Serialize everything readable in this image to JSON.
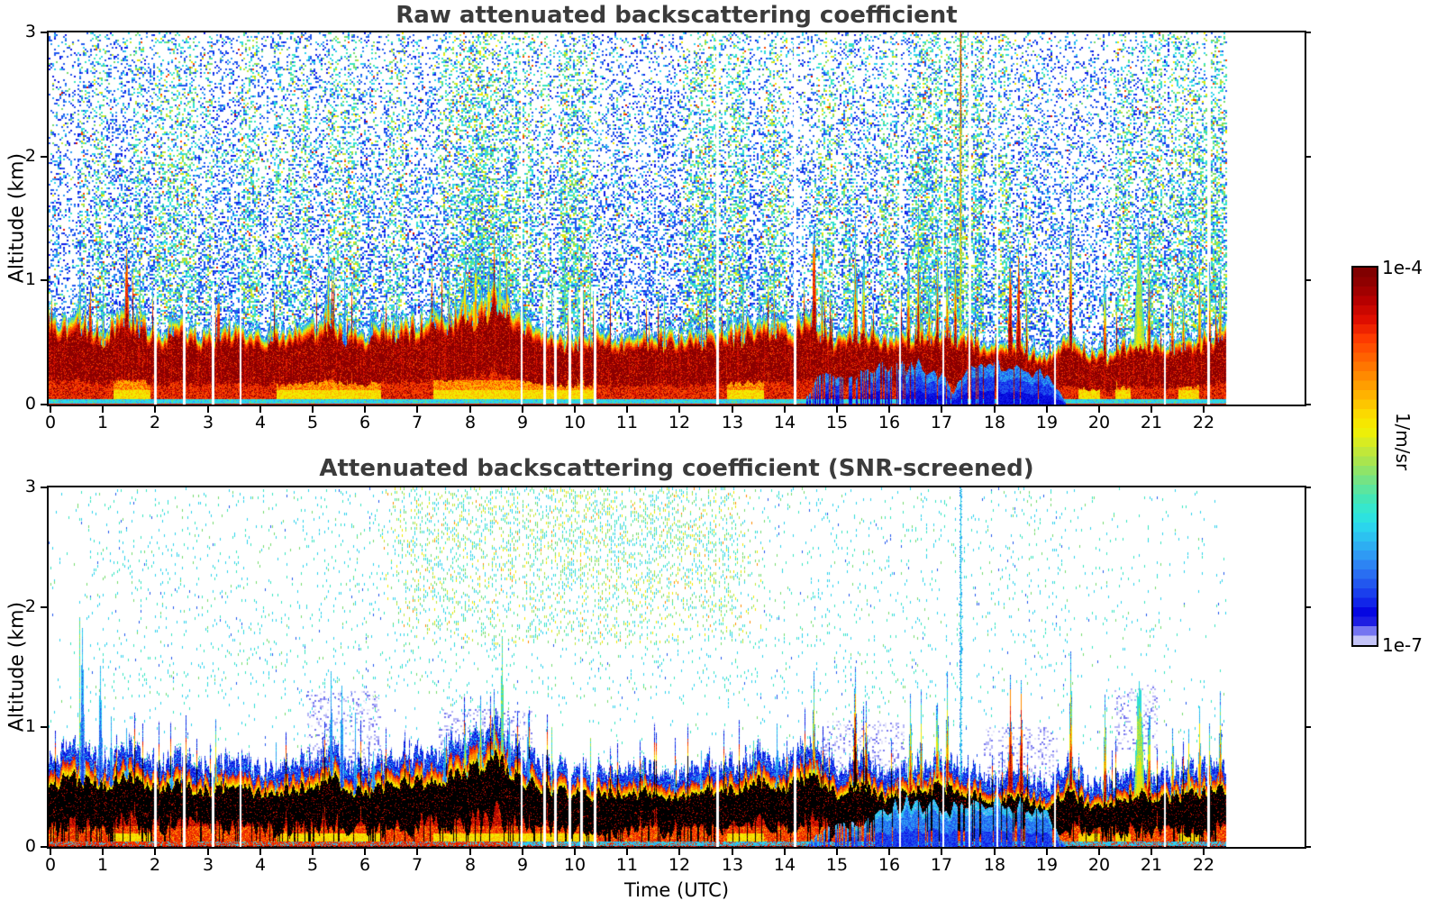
{
  "figure": {
    "background": "#ffffff",
    "title_color": "#3b3b3b",
    "axis_color": "#000000"
  },
  "panel_raw": {
    "title": "Raw attenuated backscattering coefficient",
    "ylabel": "Altitude (km)"
  },
  "panel_screened": {
    "title": "Attenuated backscattering coefficient (SNR-screened)",
    "ylabel": "Altitude (km)",
    "xlabel": "Time (UTC)"
  },
  "colorbar": {
    "max_label": "1e-4",
    "min_label": "1e-7",
    "units_label": "1/m/sr",
    "stops": [
      [
        0,
        "#7a0000"
      ],
      [
        0.045,
        "#930000"
      ],
      [
        0.09,
        "#b80000"
      ],
      [
        0.14,
        "#e00f00"
      ],
      [
        0.19,
        "#ff3c00"
      ],
      [
        0.24,
        "#ff6400"
      ],
      [
        0.29,
        "#ff8c00"
      ],
      [
        0.34,
        "#ffb400"
      ],
      [
        0.385,
        "#fbd800"
      ],
      [
        0.43,
        "#f3f000"
      ],
      [
        0.475,
        "#cdea2e"
      ],
      [
        0.52,
        "#a2e455"
      ],
      [
        0.565,
        "#72e387"
      ],
      [
        0.61,
        "#46e6b4"
      ],
      [
        0.65,
        "#2ee8d8"
      ],
      [
        0.69,
        "#2bd4ee"
      ],
      [
        0.73,
        "#2db4f2"
      ],
      [
        0.77,
        "#2f94f4"
      ],
      [
        0.81,
        "#2a70f2"
      ],
      [
        0.85,
        "#1f4cee"
      ],
      [
        0.885,
        "#1228ea"
      ],
      [
        0.91,
        "#0708e2"
      ],
      [
        0.93,
        "#0000d8"
      ],
      [
        0.945,
        "#3a3aec"
      ],
      [
        0.962,
        "#7272f1"
      ],
      [
        0.978,
        "#a5a5f6"
      ],
      [
        0.99,
        "#ccccf9"
      ],
      [
        1,
        "#e9e9fc"
      ]
    ]
  },
  "palette": {
    "darkred": "#8b0000",
    "red": "#dd1400",
    "orangered": "#fb4a00",
    "orange": "#ff8c00",
    "amber": "#ffb400",
    "yellow": "#f2ea00",
    "yellowgreen": "#bfe636",
    "green": "#74dd6e",
    "teal": "#35e6c1",
    "cyan": "#2cd2ee",
    "skyblue": "#2f9cf4",
    "blue": "#2057ee",
    "strongblue": "#0f1ae8",
    "darkblue": "#0000d2",
    "periwinkle": "#7878f1",
    "lavender": "#b4b4f6",
    "palelavender": "#e6e6fc",
    "black": "#000000",
    "white": "#ffffff"
  },
  "chart_data": {
    "type": "heatmap",
    "x_axis": {
      "label": "Time (UTC)",
      "units": "hours UTC",
      "range": [
        0,
        24
      ],
      "ticks": [
        0,
        1,
        2,
        3,
        4,
        5,
        6,
        7,
        8,
        9,
        10,
        11,
        12,
        13,
        14,
        15,
        16,
        17,
        18,
        19,
        20,
        21,
        22
      ],
      "data_end_hour": 22.42
    },
    "y_axis": {
      "label": "Altitude (km)",
      "range": [
        0,
        3
      ],
      "ticks": [
        0,
        1,
        2,
        3
      ]
    },
    "color_axis": {
      "min": "1e-7",
      "max": "1e-4",
      "units": "1/m/sr",
      "scale": "logarithmic, jet-like colormap, white below minimum"
    },
    "panels": [
      {
        "name": "raw",
        "title": "Raw attenuated backscattering coefficient",
        "description": "Strong boundary-layer aerosol band below ~0.6 km saturating to dark red; dense blue/cyan noise speckle through the free troposphere; attenuated blue near-surface zone 14.4-19.3 UTC; cloud plumes up to ~1.5 km; bright yellow calibration streak at 17.35 UTC; data end 22.42 UTC."
      },
      {
        "name": "screened",
        "title": "Attenuated backscattering coefficient (SNR-screened)",
        "description": "Same scene after SNR screening: background noise removed except residual green/yellow plume 6.3-13.6 UTC above 1.7 km; saturated black core inside the boundary-layer band; blue caps and pale lavender fringes; cyan streak at 17.35 UTC."
      }
    ],
    "boundary_layer_top_km": [
      [
        0,
        0.62
      ],
      [
        0.5,
        0.7
      ],
      [
        1,
        0.6
      ],
      [
        1.5,
        0.72
      ],
      [
        2,
        0.58
      ],
      [
        2.5,
        0.62
      ],
      [
        3,
        0.55
      ],
      [
        3.5,
        0.62
      ],
      [
        4,
        0.52
      ],
      [
        4.5,
        0.58
      ],
      [
        5,
        0.6
      ],
      [
        5.3,
        0.72
      ],
      [
        5.7,
        0.58
      ],
      [
        6,
        0.55
      ],
      [
        6.5,
        0.62
      ],
      [
        7,
        0.66
      ],
      [
        7.5,
        0.7
      ],
      [
        8,
        0.76
      ],
      [
        8.5,
        0.88
      ],
      [
        8.8,
        0.74
      ],
      [
        9,
        0.64
      ],
      [
        9.5,
        0.58
      ],
      [
        10,
        0.52
      ],
      [
        10.5,
        0.55
      ],
      [
        11,
        0.52
      ],
      [
        11.5,
        0.55
      ],
      [
        12,
        0.52
      ],
      [
        12.5,
        0.55
      ],
      [
        13,
        0.58
      ],
      [
        13.5,
        0.66
      ],
      [
        14,
        0.6
      ],
      [
        14.5,
        0.7
      ],
      [
        15,
        0.52
      ],
      [
        15.4,
        0.62
      ],
      [
        16,
        0.5
      ],
      [
        16.5,
        0.58
      ],
      [
        17,
        0.6
      ],
      [
        17.4,
        0.55
      ],
      [
        18,
        0.48
      ],
      [
        18.5,
        0.5
      ],
      [
        19,
        0.38
      ],
      [
        19.4,
        0.6
      ],
      [
        19.8,
        0.42
      ],
      [
        20.2,
        0.4
      ],
      [
        20.7,
        0.55
      ],
      [
        21,
        0.48
      ],
      [
        21.5,
        0.5
      ],
      [
        22,
        0.55
      ],
      [
        22.42,
        0.62
      ]
    ],
    "blue_zone_raw": {
      "hours": [
        14.35,
        19.35
      ],
      "mix_until": 16.2,
      "red_streak_prob_early": 0.45,
      "red_streak_prob_late": 0.12,
      "top_km": [
        [
          14.35,
          0.02
        ],
        [
          14.6,
          0.18
        ],
        [
          15,
          0.25
        ],
        [
          15.5,
          0.22
        ],
        [
          16,
          0.3
        ],
        [
          16.5,
          0.3
        ],
        [
          17,
          0.22
        ],
        [
          17.2,
          0.1
        ],
        [
          17.5,
          0.25
        ],
        [
          18,
          0.34
        ],
        [
          18.5,
          0.3
        ],
        [
          19,
          0.22
        ],
        [
          19.35,
          0.02
        ]
      ]
    },
    "blue_zone_screened": {
      "hours": [
        14.35,
        19.35
      ],
      "mix_until": 15.7,
      "red_streak_prob_early": 0.55,
      "red_streak_prob_late": 0.15,
      "top_km": [
        [
          14.35,
          0.02
        ],
        [
          14.8,
          0.15
        ],
        [
          15.3,
          0.18
        ],
        [
          15.8,
          0.25
        ],
        [
          16.3,
          0.35
        ],
        [
          17,
          0.3
        ],
        [
          17.5,
          0.3
        ],
        [
          18,
          0.38
        ],
        [
          18.5,
          0.34
        ],
        [
          19,
          0.25
        ],
        [
          19.35,
          0.02
        ]
      ]
    },
    "surface_yellow_patches_hours": [
      [
        1.2,
        1.9
      ],
      [
        4.3,
        6.3
      ],
      [
        7.3,
        10.4
      ],
      [
        12.9,
        13.6
      ],
      [
        19.6,
        20.0
      ],
      [
        20.3,
        20.6
      ],
      [
        21.5,
        21.9
      ]
    ],
    "gaps_full_hours": [
      8.98,
      12.72,
      14.2,
      16.2,
      17.02,
      17.52,
      18.05,
      22.08
    ],
    "gaps_band_hours": [
      2.0,
      2.55,
      3.1,
      3.62,
      9.42,
      9.63,
      9.9,
      10.12,
      10.38,
      19.15,
      21.25
    ],
    "calibration_line_hour": 17.35,
    "noise_plume_screened": {
      "hours": [
        6.3,
        13.6
      ],
      "alt_km": [
        1.7,
        3.0
      ]
    },
    "lavender_patches_screened": [
      [
        4.9,
        6.3,
        0.65,
        1.3
      ],
      [
        7.4,
        9.2,
        0.7,
        1.15
      ],
      [
        14.7,
        16.3,
        0.55,
        1.05
      ],
      [
        17.8,
        19.2,
        0.55,
        1.0
      ],
      [
        20.3,
        21.1,
        0.8,
        1.35
      ]
    ],
    "speckle_density_raw_by_alt": [
      [
        0,
        0.55
      ],
      [
        1,
        0.48
      ],
      [
        1.5,
        0.4
      ],
      [
        2,
        0.33
      ],
      [
        2.5,
        0.27
      ],
      [
        3,
        0.2
      ]
    ],
    "speckle_boost_raw": [
      [
        7.7,
        9.2,
        1.5
      ],
      [
        9.7,
        10.2,
        1.3
      ],
      [
        12.3,
        13.2,
        1.25
      ],
      [
        16.5,
        17.8,
        1.45
      ],
      [
        20.9,
        22.45,
        1.25
      ]
    ],
    "speckle_damp_raw": [
      [
        0,
        0.5,
        0.6
      ],
      [
        10.8,
        11.6,
        0.8
      ],
      [
        19.3,
        20.3,
        0.75
      ]
    ],
    "spikes_raw": [
      [
        0.55,
        1.15,
        "m",
        4
      ],
      [
        0.75,
        1.05,
        "r",
        4
      ],
      [
        1.0,
        0.95,
        "m",
        3
      ],
      [
        1.45,
        1.3,
        "r",
        5
      ],
      [
        1.7,
        0.9,
        "m",
        3
      ],
      [
        2.3,
        0.85,
        "m",
        3
      ],
      [
        3.2,
        1.0,
        "r",
        4
      ],
      [
        4.2,
        0.8,
        "m",
        3
      ],
      [
        5.3,
        1.25,
        "m",
        5
      ],
      [
        5.6,
        0.95,
        "b",
        3
      ],
      [
        6.1,
        0.85,
        "b",
        3
      ],
      [
        6.6,
        0.9,
        "m",
        3
      ],
      [
        7.3,
        0.95,
        "m",
        3
      ],
      [
        7.6,
        1.05,
        "m",
        4
      ],
      [
        7.9,
        1.2,
        "y",
        5
      ],
      [
        8.1,
        1.25,
        "y",
        6
      ],
      [
        8.35,
        1.3,
        "y",
        6
      ],
      [
        8.55,
        1.35,
        "g",
        6
      ],
      [
        8.7,
        1.2,
        "y",
        4
      ],
      [
        9.0,
        0.9,
        "m",
        3
      ],
      [
        9.55,
        1.0,
        "n",
        2
      ],
      [
        9.8,
        1.05,
        "n",
        2
      ],
      [
        10.05,
        1.0,
        "n",
        2
      ],
      [
        10.3,
        1.25,
        "n",
        2
      ],
      [
        10.55,
        0.95,
        "n",
        2
      ],
      [
        11.2,
        0.8,
        "n",
        2
      ],
      [
        11.7,
        0.85,
        "m",
        3
      ],
      [
        12.4,
        0.85,
        "m",
        3
      ],
      [
        12.9,
        0.8,
        "n",
        2
      ],
      [
        13.2,
        0.9,
        "m",
        3
      ],
      [
        13.5,
        1.0,
        "n",
        2
      ],
      [
        13.8,
        1.05,
        "m",
        3
      ],
      [
        14.55,
        1.5,
        "r",
        5
      ],
      [
        14.7,
        1.2,
        "m",
        3
      ],
      [
        15.35,
        1.5,
        "m",
        5
      ],
      [
        15.5,
        1.35,
        "m",
        4
      ],
      [
        16.35,
        1.3,
        "m",
        4
      ],
      [
        16.55,
        1.45,
        "m",
        4
      ],
      [
        16.75,
        1.1,
        "m",
        3
      ],
      [
        16.9,
        1.35,
        "m",
        4
      ],
      [
        17.1,
        1.3,
        "m",
        3
      ],
      [
        17.25,
        1.45,
        "m",
        3
      ],
      [
        18.3,
        1.35,
        "r",
        4
      ],
      [
        18.45,
        1.3,
        "r",
        4
      ],
      [
        18.6,
        1.0,
        "m",
        3
      ],
      [
        19.45,
        1.65,
        "m",
        3
      ],
      [
        20.1,
        1.2,
        "m",
        3
      ],
      [
        20.75,
        1.45,
        "g",
        10
      ],
      [
        20.95,
        1.25,
        "m",
        4
      ],
      [
        21.4,
        1.1,
        "m",
        3
      ],
      [
        21.6,
        1.05,
        "m",
        3
      ],
      [
        21.9,
        1.15,
        "y",
        4
      ],
      [
        22.1,
        1.3,
        "m",
        3
      ],
      [
        22.3,
        1.25,
        "m",
        3
      ]
    ],
    "spikes_screened": [
      [
        0.55,
        1.85,
        "n",
        2
      ],
      [
        0.6,
        1.65,
        "b",
        5
      ],
      [
        0.95,
        1.55,
        "b",
        4
      ],
      [
        1.15,
        1.1,
        "b",
        3
      ],
      [
        1.45,
        0.95,
        "b",
        3
      ],
      [
        2.3,
        0.8,
        "b",
        3
      ],
      [
        3.15,
        0.95,
        "m",
        4
      ],
      [
        4.3,
        0.9,
        "b",
        2
      ],
      [
        5.35,
        1.3,
        "b",
        4
      ],
      [
        5.55,
        1.2,
        "b",
        4
      ],
      [
        5.8,
        1.0,
        "b",
        3
      ],
      [
        6.15,
        0.9,
        "b",
        3
      ],
      [
        7.5,
        1.0,
        "b",
        3
      ],
      [
        7.9,
        1.1,
        "m",
        4
      ],
      [
        8.2,
        1.2,
        "m",
        5
      ],
      [
        8.45,
        1.25,
        "m",
        5
      ],
      [
        8.6,
        1.7,
        "n",
        3
      ],
      [
        8.75,
        1.15,
        "b",
        3
      ],
      [
        9.1,
        1.1,
        "b",
        3
      ],
      [
        9.55,
        0.95,
        "n",
        2
      ],
      [
        9.9,
        0.9,
        "n",
        2
      ],
      [
        10.3,
        0.85,
        "n",
        2
      ],
      [
        11.3,
        0.75,
        "n",
        2
      ],
      [
        11.9,
        0.8,
        "b",
        2
      ],
      [
        12.4,
        0.85,
        "b",
        2
      ],
      [
        13.4,
        0.9,
        "n",
        2
      ],
      [
        13.85,
        1.0,
        "b",
        3
      ],
      [
        14.55,
        1.35,
        "m",
        4
      ],
      [
        15.35,
        1.45,
        "k",
        5
      ],
      [
        15.55,
        1.3,
        "k",
        4
      ],
      [
        16.4,
        1.3,
        "m",
        4
      ],
      [
        16.6,
        1.2,
        "m",
        3
      ],
      [
        16.9,
        1.4,
        "m",
        4
      ],
      [
        17.1,
        1.3,
        "m",
        3
      ],
      [
        18.3,
        1.35,
        "r",
        4
      ],
      [
        18.5,
        1.3,
        "r",
        4
      ],
      [
        19.45,
        1.6,
        "m",
        3
      ],
      [
        20.1,
        1.2,
        "m",
        3
      ],
      [
        20.75,
        1.45,
        "g",
        10
      ],
      [
        20.95,
        1.25,
        "m",
        4
      ],
      [
        21.4,
        1.05,
        "m",
        3
      ],
      [
        21.7,
        0.95,
        "y",
        3
      ],
      [
        21.9,
        1.1,
        "y",
        3
      ],
      [
        22.1,
        1.2,
        "m",
        3
      ],
      [
        22.3,
        1.2,
        "m",
        3
      ]
    ]
  }
}
